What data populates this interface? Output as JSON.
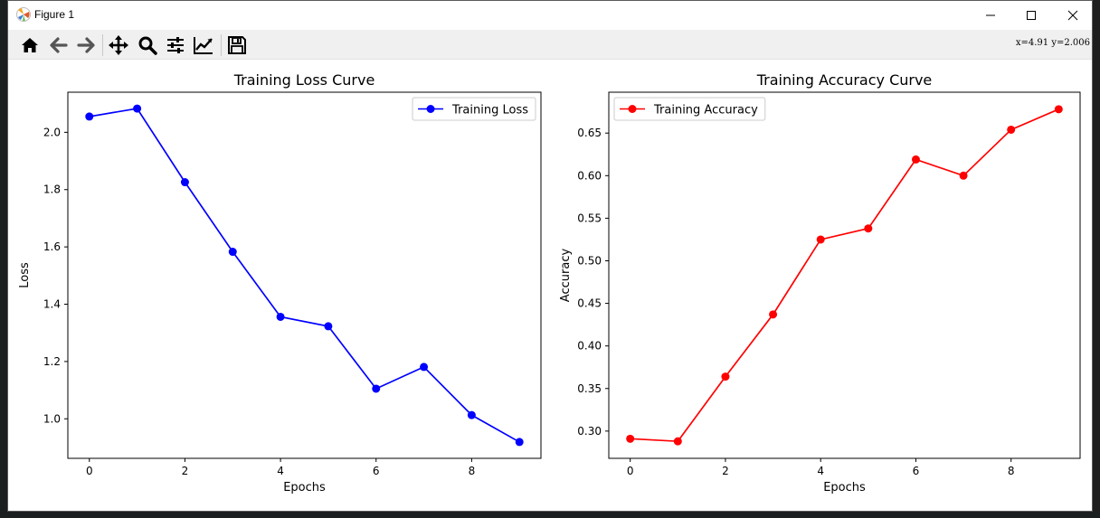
{
  "window": {
    "title": "Figure 1",
    "controls": {
      "minimize": "minimize",
      "maximize": "maximize",
      "close": "close"
    }
  },
  "toolbar": {
    "buttons": [
      {
        "name": "home",
        "icon": "home-icon"
      },
      {
        "name": "back",
        "icon": "arrow-left-icon"
      },
      {
        "name": "forward",
        "icon": "arrow-right-icon"
      },
      {
        "name": "pan",
        "icon": "move-icon"
      },
      {
        "name": "zoom",
        "icon": "magnifier-icon"
      },
      {
        "name": "configure-subplots",
        "icon": "sliders-icon"
      },
      {
        "name": "edit-axis",
        "icon": "line-chart-icon"
      },
      {
        "name": "save",
        "icon": "floppy-disk-icon"
      }
    ],
    "coordinates": "x=4.91 y=2.006"
  },
  "chart_data": [
    {
      "type": "line",
      "title": "Training Loss Curve",
      "xlabel": "Epochs",
      "ylabel": "Loss",
      "x": [
        0,
        1,
        2,
        3,
        4,
        5,
        6,
        7,
        8,
        9
      ],
      "series": [
        {
          "name": "Training Loss",
          "color": "#0000ff",
          "marker": "circle",
          "values": [
            2.055,
            2.083,
            1.826,
            1.583,
            1.356,
            1.323,
            1.105,
            1.181,
            1.013,
            0.919
          ]
        }
      ],
      "xlim": [
        -0.45,
        9.45
      ],
      "ylim": [
        0.862,
        2.14
      ],
      "xticks": [
        0,
        2,
        4,
        6,
        8
      ],
      "yticks": [
        1.0,
        1.2,
        1.4,
        1.6,
        1.8,
        2.0
      ],
      "ytick_labels": [
        "1.0",
        "1.2",
        "1.4",
        "1.6",
        "1.8",
        "2.0"
      ],
      "legend": "upper right",
      "grid": false
    },
    {
      "type": "line",
      "title": "Training Accuracy Curve",
      "xlabel": "Epochs",
      "ylabel": "Accuracy",
      "x": [
        0,
        1,
        2,
        3,
        4,
        5,
        6,
        7,
        8,
        9
      ],
      "series": [
        {
          "name": "Training Accuracy",
          "color": "#ff0000",
          "marker": "circle",
          "values": [
            0.291,
            0.288,
            0.364,
            0.437,
            0.525,
            0.538,
            0.619,
            0.6,
            0.654,
            0.678
          ]
        }
      ],
      "xlim": [
        -0.45,
        9.45
      ],
      "ylim": [
        0.268,
        0.698
      ],
      "xticks": [
        0,
        2,
        4,
        6,
        8
      ],
      "yticks": [
        0.3,
        0.35,
        0.4,
        0.45,
        0.5,
        0.55,
        0.6,
        0.65
      ],
      "ytick_labels": [
        "0.30",
        "0.35",
        "0.40",
        "0.45",
        "0.50",
        "0.55",
        "0.60",
        "0.65"
      ],
      "legend": "upper left",
      "grid": false
    }
  ]
}
